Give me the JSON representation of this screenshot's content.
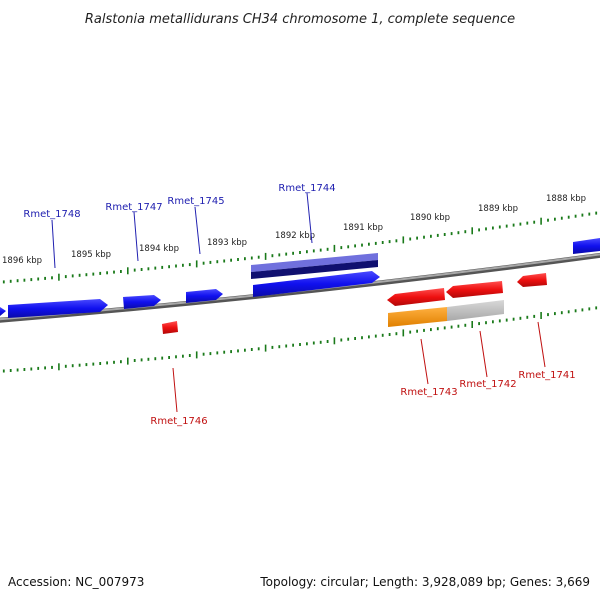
{
  "title": "Ralstonia metallidurans CH34 chromosome 1, complete sequence",
  "footer": {
    "accession": "Accession: NC_007973",
    "summary": "Topology: circular; Length: 3,928,089 bp; Genes: 3,669"
  },
  "kbp_labels": [
    "1896 kbp",
    "1895 kbp",
    "1894 kbp",
    "1893 kbp",
    "1892 kbp",
    "1891 kbp",
    "1890 kbp",
    "1889 kbp",
    "1888 kbp"
  ],
  "forward_gene_labels": [
    "Rmet_1748",
    "Rmet_1747",
    "Rmet_1745",
    "Rmet_1744"
  ],
  "reverse_gene_labels": [
    "Rmet_1746",
    "Rmet_1743",
    "Rmet_1742",
    "Rmet_1741"
  ],
  "colors": {
    "forward": "#1010ee",
    "reverse": "#ee1010",
    "tick": "#1a7a1a",
    "backbone": "#777777",
    "forward_label": "#2020b0",
    "reverse_label": "#c01010",
    "rna_light": "#7070dd",
    "rna_dark": "#101070",
    "orange": "#f09010",
    "gray_feature": "#bbbbbb"
  }
}
